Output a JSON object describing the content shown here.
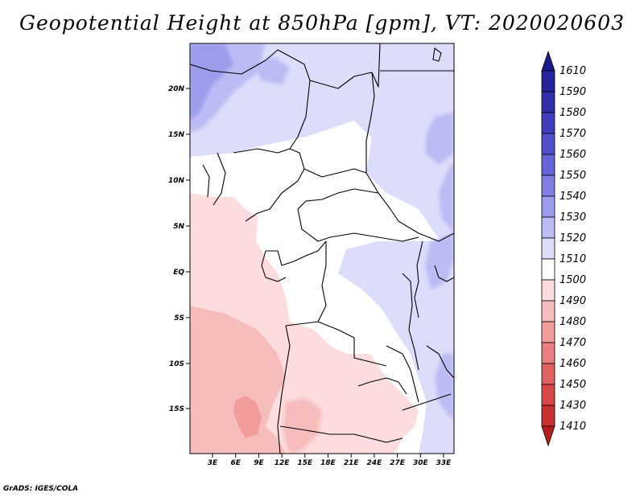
{
  "title": "Geopotential Height at 850hPa [gpm], VT: 2020020603",
  "credit": "GrADS: IGES/COLA",
  "map": {
    "lat_labels": [
      "20N",
      "15N",
      "10N",
      "5N",
      "EQ",
      "5S",
      "10S",
      "15S"
    ],
    "lon_labels": [
      "3E",
      "6E",
      "9E",
      "12E",
      "15E",
      "18E",
      "21E",
      "24E",
      "27E",
      "30E",
      "33E"
    ]
  },
  "colorbar": {
    "levels": [
      "1610",
      "1590",
      "1580",
      "1570",
      "1560",
      "1550",
      "1540",
      "1530",
      "1520",
      "1510",
      "1500",
      "1490",
      "1480",
      "1470",
      "1460",
      "1450",
      "1430",
      "1410"
    ],
    "colors": [
      "#1a1a8c",
      "#24249c",
      "#3030ad",
      "#3f3fbd",
      "#5050cc",
      "#6565d8",
      "#7e7ee3",
      "#9c9ced",
      "#bcbcf5",
      "#dcdcfb",
      "#ffffff",
      "#fcdcdc",
      "#f7bcbc",
      "#f29c9c",
      "#eb7e7e",
      "#e26262",
      "#d84848",
      "#c93030",
      "#b51e1e"
    ]
  }
}
